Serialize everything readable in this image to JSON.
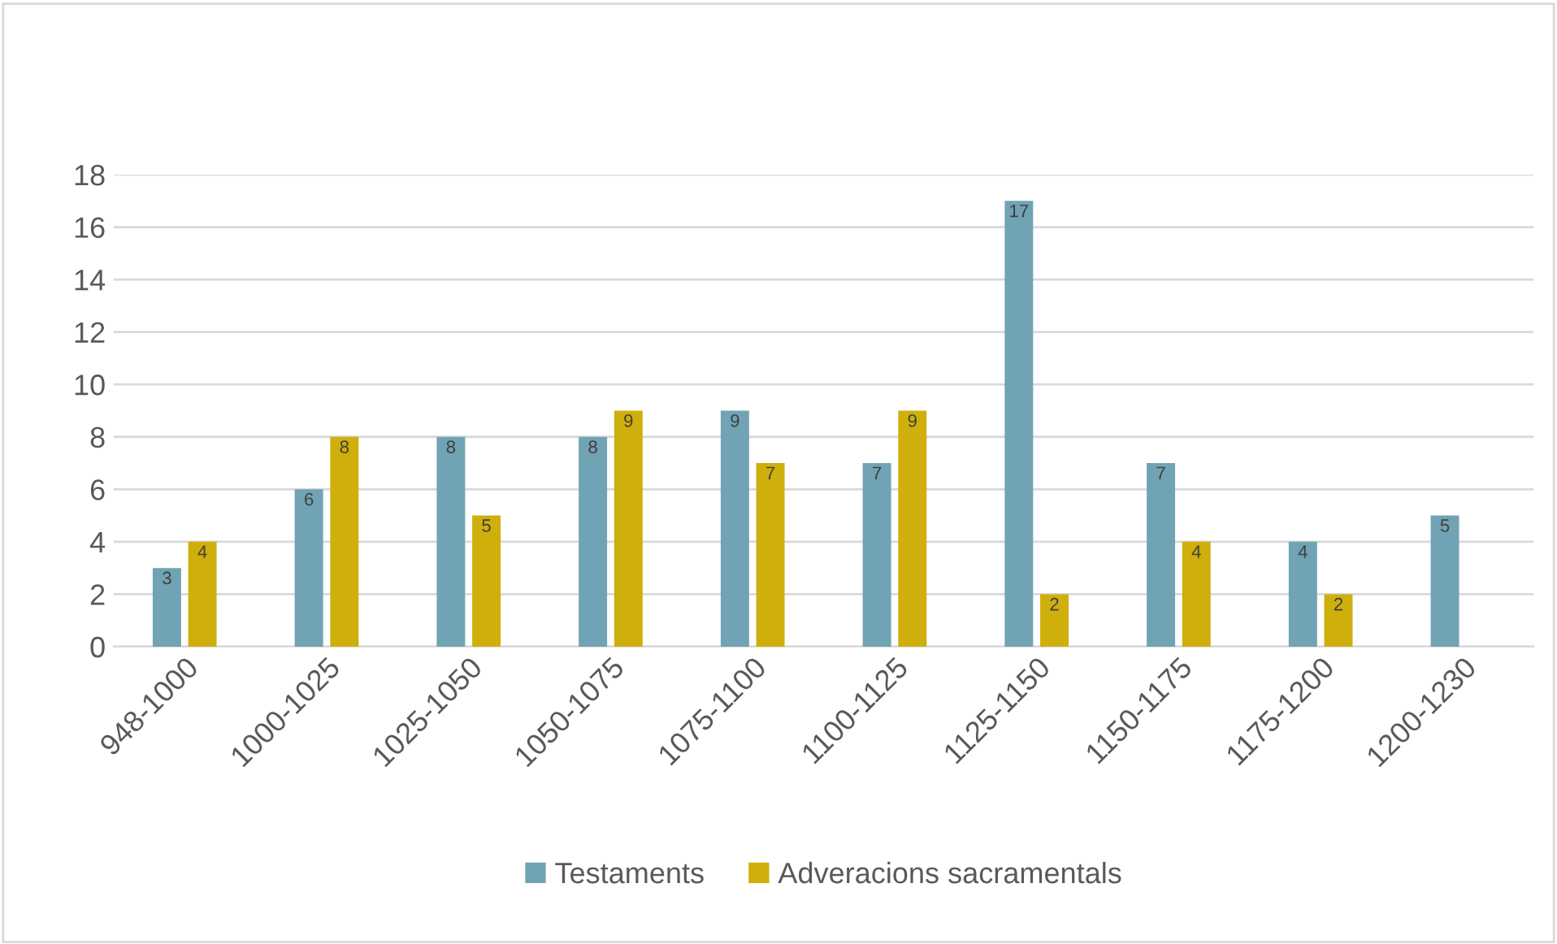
{
  "chart_data": {
    "type": "bar",
    "categories": [
      "948-1000",
      "1000-1025",
      "1025-1050",
      "1050-1075",
      "1075-1100",
      "1100-1125",
      "1125-1150",
      "1150-1175",
      "1175-1200",
      "1200-1230"
    ],
    "series": [
      {
        "name": "Testaments",
        "color": "#70a3b3",
        "values": [
          3,
          6,
          8,
          8,
          9,
          7,
          17,
          7,
          4,
          5
        ]
      },
      {
        "name": "Adveracions sacramentals",
        "color": "#cfaf0b",
        "values": [
          4,
          8,
          5,
          9,
          7,
          9,
          2,
          4,
          2,
          null
        ]
      }
    ],
    "ylim": [
      0,
      18
    ],
    "yticks": [
      0,
      2,
      4,
      6,
      8,
      10,
      12,
      14,
      16,
      18
    ],
    "grid": "y",
    "legend": "bottom",
    "data_labels": true
  }
}
